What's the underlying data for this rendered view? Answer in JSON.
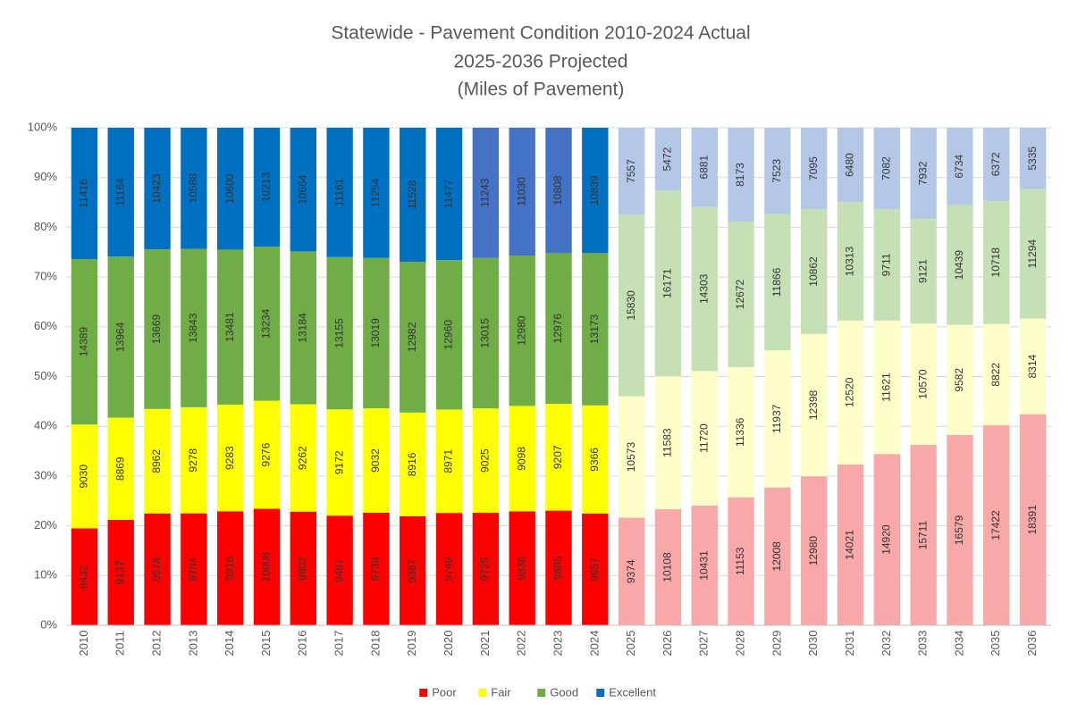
{
  "chart_data": {
    "type": "stacked_bar_100",
    "title": [
      "Statewide - Pavement Condition 2010-2024 Actual",
      "2025-2036 Projected",
      "(Miles of Pavement)"
    ],
    "categories": [
      "2010",
      "2011",
      "2012",
      "2013",
      "2014",
      "2015",
      "2016",
      "2017",
      "2018",
      "2019",
      "2020",
      "2021",
      "2022",
      "2023",
      "2024",
      "2025",
      "2026",
      "2027",
      "2028",
      "2029",
      "2030",
      "2031",
      "2032",
      "2033",
      "2034",
      "2035",
      "2036"
    ],
    "series": [
      {
        "name": "Poor",
        "color": "#ff0000",
        "colors": [
          "#ff0000",
          "#ff0000",
          "#ff0000",
          "#ff0000",
          "#ff0000",
          "#ff0000",
          "#ff0000",
          "#ff0000",
          "#ff0000",
          "#ff0000",
          "#ff0000",
          "#ff0000",
          "#ff0000",
          "#ff0000",
          "#ff0000",
          "#f8a8a8",
          "#f8a8a8",
          "#f8a8a8",
          "#f8a8a8",
          "#f8a8a8",
          "#f8a8a8",
          "#f8a8a8",
          "#f8a8a8",
          "#f8a8a8",
          "#f8a8a8",
          "#f8a8a8",
          "#f8a8a8"
        ],
        "values": [
          8432,
          9137,
          9578,
          9784,
          9916,
          10008,
          9802,
          9467,
          9738,
          9387,
          9749,
          9725,
          9838,
          9885,
          9657,
          9374,
          10108,
          10431,
          11153,
          12008,
          12980,
          14021,
          14920,
          15711,
          16579,
          17422,
          18391
        ]
      },
      {
        "name": "Fair",
        "color": "#ffff00",
        "colors": [
          "#ffff00",
          "#ffff00",
          "#ffff00",
          "#ffff00",
          "#ffff00",
          "#ffff00",
          "#ffff00",
          "#ffff00",
          "#ffff00",
          "#ffff00",
          "#ffff00",
          "#ffff00",
          "#ffff00",
          "#ffff00",
          "#ffff00",
          "#fefec8",
          "#fefec8",
          "#fefec8",
          "#fefec8",
          "#fefec8",
          "#fefec8",
          "#fefec8",
          "#fefec8",
          "#fefec8",
          "#fefec8",
          "#fefec8",
          "#fefec8"
        ],
        "values": [
          9030,
          8869,
          8962,
          9278,
          9283,
          9276,
          9262,
          9172,
          9032,
          8916,
          8971,
          9025,
          9098,
          9207,
          9366,
          10573,
          11583,
          11720,
          11336,
          11937,
          12398,
          12520,
          11621,
          10570,
          9582,
          8822,
          8314
        ]
      },
      {
        "name": "Good",
        "color": "#70ad47",
        "colors": [
          "#70ad47",
          "#70ad47",
          "#70ad47",
          "#70ad47",
          "#70ad47",
          "#70ad47",
          "#70ad47",
          "#70ad47",
          "#70ad47",
          "#70ad47",
          "#70ad47",
          "#70ad47",
          "#70ad47",
          "#70ad47",
          "#70ad47",
          "#c5e0b4",
          "#c5e0b4",
          "#c5e0b4",
          "#c5e0b4",
          "#c5e0b4",
          "#c5e0b4",
          "#c5e0b4",
          "#c5e0b4",
          "#c5e0b4",
          "#c5e0b4",
          "#c5e0b4",
          "#c5e0b4"
        ],
        "values": [
          14389,
          13964,
          13669,
          13843,
          13481,
          13234,
          13184,
          13155,
          13019,
          12982,
          12960,
          13015,
          12980,
          12976,
          13173,
          15830,
          16171,
          14303,
          12672,
          11866,
          10862,
          10313,
          9711,
          9121,
          10439,
          10718,
          11294
        ]
      },
      {
        "name": "Excellent",
        "color": "#0070c0",
        "colors": [
          "#0070c0",
          "#0070c0",
          "#0070c0",
          "#0070c0",
          "#0070c0",
          "#0070c0",
          "#0070c0",
          "#0070c0",
          "#0070c0",
          "#0070c0",
          "#0070c0",
          "#4472c4",
          "#4472c4",
          "#4472c4",
          "#0070c0",
          "#b4c7e7",
          "#b4c7e7",
          "#b4c7e7",
          "#b4c7e7",
          "#b4c7e7",
          "#b4c7e7",
          "#b4c7e7",
          "#b4c7e7",
          "#b4c7e7",
          "#b4c7e7",
          "#b4c7e7",
          "#b4c7e7"
        ],
        "values": [
          11416,
          11164,
          10423,
          10588,
          10600,
          10213,
          10664,
          11161,
          11254,
          11528,
          11477,
          11243,
          11030,
          10808,
          10839,
          7557,
          5472,
          6881,
          8173,
          7523,
          7095,
          6480,
          7082,
          7932,
          6734,
          6372,
          5335
        ]
      }
    ],
    "ylim": [
      0,
      100
    ],
    "yticks": [
      {
        "value": 0,
        "label": "0%"
      },
      {
        "value": 10,
        "label": "10%"
      },
      {
        "value": 20,
        "label": "20%"
      },
      {
        "value": 30,
        "label": "30%"
      },
      {
        "value": 40,
        "label": "40%"
      },
      {
        "value": 50,
        "label": "50%"
      },
      {
        "value": 60,
        "label": "60%"
      },
      {
        "value": 70,
        "label": "70%"
      },
      {
        "value": 80,
        "label": "80%"
      },
      {
        "value": 90,
        "label": "90%"
      },
      {
        "value": 100,
        "label": "100%"
      }
    ],
    "grid": true,
    "legend": "bottom"
  }
}
